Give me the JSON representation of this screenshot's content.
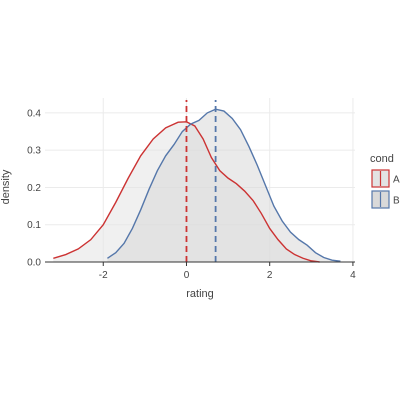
{
  "chart_data": {
    "type": "area",
    "xlabel": "rating",
    "ylabel": "density",
    "xlim": [
      -3.4,
      4.05
    ],
    "ylim": [
      0,
      0.44
    ],
    "x_ticks": [
      -2,
      0,
      2,
      4
    ],
    "y_ticks": [
      0.0,
      0.1,
      0.2,
      0.3,
      0.4
    ],
    "x_tick_labels": [
      "-2",
      "0",
      "2",
      "4"
    ],
    "y_tick_labels": [
      "0.0",
      "0.1",
      "0.2",
      "0.3",
      "0.4"
    ],
    "grid": true,
    "legend": {
      "title": "cond",
      "placement": "right",
      "entries": [
        "A",
        "B"
      ]
    },
    "series": [
      {
        "name": "A",
        "color": "#cc3333",
        "fill": "#e3e3e3",
        "mean": 0.0,
        "points": [
          [
            -3.2,
            0.01
          ],
          [
            -2.9,
            0.02
          ],
          [
            -2.6,
            0.035
          ],
          [
            -2.3,
            0.06
          ],
          [
            -2.0,
            0.1
          ],
          [
            -1.7,
            0.16
          ],
          [
            -1.4,
            0.225
          ],
          [
            -1.1,
            0.285
          ],
          [
            -0.8,
            0.33
          ],
          [
            -0.5,
            0.36
          ],
          [
            -0.2,
            0.375
          ],
          [
            0.0,
            0.376
          ],
          [
            0.2,
            0.365
          ],
          [
            0.4,
            0.33
          ],
          [
            0.6,
            0.28
          ],
          [
            0.8,
            0.245
          ],
          [
            1.0,
            0.225
          ],
          [
            1.2,
            0.21
          ],
          [
            1.4,
            0.19
          ],
          [
            1.6,
            0.165
          ],
          [
            1.8,
            0.13
          ],
          [
            2.0,
            0.09
          ],
          [
            2.2,
            0.06
          ],
          [
            2.4,
            0.035
          ],
          [
            2.6,
            0.02
          ],
          [
            2.8,
            0.01
          ],
          [
            3.0,
            0.003
          ],
          [
            3.2,
            0.0
          ]
        ]
      },
      {
        "name": "B",
        "color": "#5577aa",
        "fill": "#d9d9d9",
        "mean": 0.7,
        "points": [
          [
            -1.9,
            0.01
          ],
          [
            -1.7,
            0.025
          ],
          [
            -1.5,
            0.05
          ],
          [
            -1.3,
            0.09
          ],
          [
            -1.1,
            0.14
          ],
          [
            -0.9,
            0.195
          ],
          [
            -0.7,
            0.245
          ],
          [
            -0.5,
            0.285
          ],
          [
            -0.3,
            0.315
          ],
          [
            -0.1,
            0.35
          ],
          [
            0.1,
            0.37
          ],
          [
            0.3,
            0.38
          ],
          [
            0.5,
            0.4
          ],
          [
            0.7,
            0.41
          ],
          [
            0.9,
            0.405
          ],
          [
            1.1,
            0.385
          ],
          [
            1.3,
            0.355
          ],
          [
            1.5,
            0.31
          ],
          [
            1.7,
            0.26
          ],
          [
            1.9,
            0.205
          ],
          [
            2.1,
            0.15
          ],
          [
            2.3,
            0.11
          ],
          [
            2.5,
            0.08
          ],
          [
            2.7,
            0.06
          ],
          [
            2.9,
            0.045
          ],
          [
            3.1,
            0.025
          ],
          [
            3.3,
            0.012
          ],
          [
            3.5,
            0.005
          ],
          [
            3.7,
            0.002
          ]
        ]
      }
    ]
  }
}
